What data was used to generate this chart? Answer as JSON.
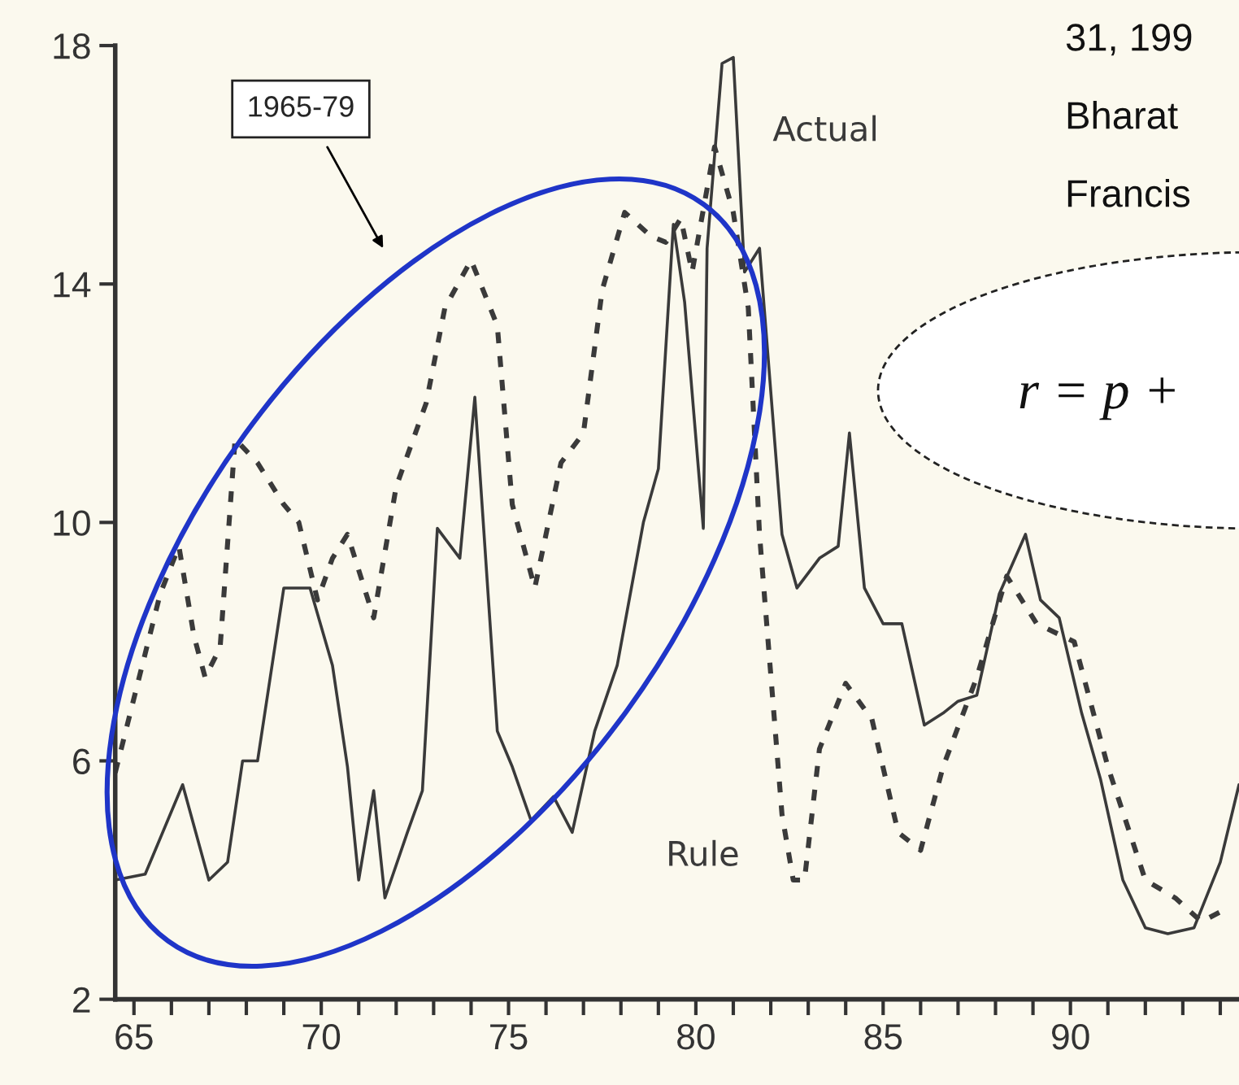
{
  "chart_data": {
    "type": "line",
    "series": [
      {
        "name": "Actual",
        "color": "#3a3a3a",
        "line_style": "solid",
        "x": [
          64.5,
          65.3,
          66.3,
          67.0,
          67.5,
          67.9,
          68.3,
          69.0,
          69.7,
          70.3,
          70.7,
          71.0,
          71.4,
          71.7,
          72.3,
          72.7,
          73.1,
          73.7,
          74.1,
          74.7,
          75.1,
          75.6,
          76.2,
          76.7,
          77.3,
          77.9,
          78.6,
          79.0,
          79.4,
          79.7,
          80.2,
          80.3,
          80.7,
          81.0,
          81.3,
          81.7,
          82.3,
          82.7,
          83.3,
          83.8,
          84.1,
          84.5,
          85.0,
          85.5,
          86.1,
          86.6,
          87.0,
          87.5,
          88.1,
          88.8,
          89.2,
          89.7,
          90.3,
          90.8,
          91.4,
          92.0,
          92.6,
          93.3,
          94.0,
          94.5
        ],
        "values": [
          4.0,
          4.1,
          5.6,
          4.0,
          4.3,
          6.0,
          6.0,
          8.9,
          8.9,
          7.6,
          5.9,
          4.0,
          5.5,
          3.7,
          4.8,
          5.5,
          9.9,
          9.4,
          12.1,
          6.5,
          5.9,
          5.0,
          5.4,
          4.8,
          6.5,
          7.6,
          10.0,
          10.9,
          15.0,
          13.7,
          9.9,
          14.6,
          17.7,
          17.8,
          14.2,
          14.6,
          9.8,
          8.9,
          9.4,
          9.6,
          11.5,
          8.9,
          8.3,
          8.3,
          6.6,
          6.8,
          7.0,
          7.1,
          8.8,
          9.8,
          8.7,
          8.4,
          6.8,
          5.7,
          4.0,
          3.2,
          3.1,
          3.2,
          4.3,
          5.6
        ]
      },
      {
        "name": "Rule",
        "color": "#3a3a3a",
        "line_style": "dashed",
        "x": [
          64.5,
          65.1,
          65.7,
          66.2,
          66.6,
          66.9,
          67.3,
          67.7,
          68.3,
          69.0,
          69.4,
          69.9,
          70.3,
          70.7,
          71.4,
          72.0,
          72.8,
          73.3,
          74.0,
          74.7,
          75.1,
          75.7,
          76.4,
          77.0,
          77.5,
          78.1,
          78.8,
          79.2,
          79.6,
          79.9,
          80.5,
          81.0,
          81.4,
          81.7,
          82.3,
          82.6,
          82.9,
          83.3,
          84.0,
          84.7,
          85.4,
          86.0,
          86.6,
          87.5,
          88.3,
          89.1,
          90.1,
          91.0,
          92.0,
          92.8,
          93.5,
          94.1
        ],
        "values": [
          5.8,
          7.3,
          8.8,
          9.6,
          8.1,
          7.4,
          7.9,
          11.4,
          11.0,
          10.3,
          10.0,
          8.7,
          9.4,
          9.8,
          8.4,
          10.6,
          12.0,
          13.6,
          14.4,
          13.3,
          10.3,
          8.9,
          11.0,
          11.5,
          13.9,
          15.2,
          14.8,
          14.7,
          15.1,
          14.2,
          16.3,
          15.2,
          13.6,
          9.8,
          5.1,
          4.0,
          4.0,
          6.2,
          7.3,
          6.7,
          4.8,
          4.5,
          5.9,
          7.4,
          9.1,
          8.3,
          8.0,
          5.9,
          4.0,
          3.7,
          3.3,
          3.5
        ]
      }
    ],
    "xlim": [
      64.5,
      94.5
    ],
    "xticks": [
      65,
      {
        "value": 66,
        "label": null
      },
      {
        "value": 67,
        "label": null
      },
      {
        "value": 68,
        "label": null
      },
      {
        "value": 69,
        "label": null
      },
      70,
      {
        "value": 71,
        "label": null
      },
      {
        "value": 72,
        "label": null
      },
      {
        "value": 73,
        "label": null
      },
      {
        "value": 74,
        "label": null
      },
      75,
      {
        "value": 76,
        "label": null
      },
      {
        "value": 77,
        "label": null
      },
      {
        "value": 78,
        "label": null
      },
      {
        "value": 79,
        "label": null
      },
      80,
      {
        "value": 81,
        "label": null
      },
      {
        "value": 82,
        "label": null
      },
      {
        "value": 83,
        "label": null
      },
      {
        "value": 84,
        "label": null
      },
      85,
      {
        "value": 86,
        "label": null
      },
      {
        "value": 87,
        "label": null
      },
      {
        "value": 88,
        "label": null
      },
      {
        "value": 89,
        "label": null
      },
      90,
      {
        "value": 91,
        "label": null
      },
      {
        "value": 92,
        "label": null
      },
      {
        "value": 93,
        "label": null
      },
      {
        "value": 94,
        "label": null
      }
    ],
    "ylim": [
      2,
      18
    ],
    "yticks": [
      2,
      6,
      10,
      14,
      18
    ],
    "grid": false,
    "legend": false,
    "annotations": [
      "1965-79",
      "31, 199",
      "Bharat",
      "Francis",
      "r = p +"
    ]
  }
}
